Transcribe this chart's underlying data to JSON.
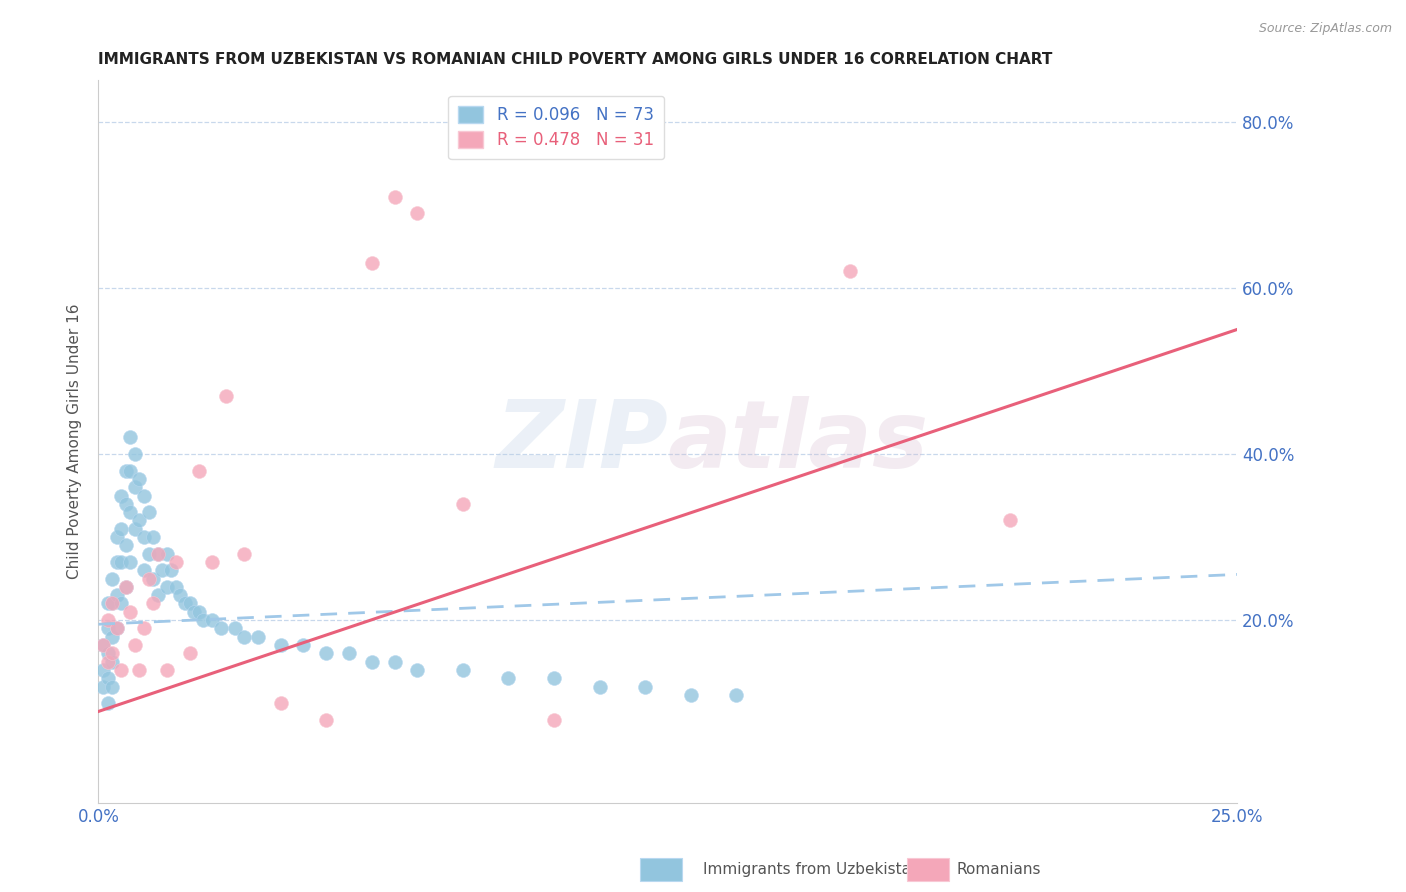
{
  "title": "IMMIGRANTS FROM UZBEKISTAN VS ROMANIAN CHILD POVERTY AMONG GIRLS UNDER 16 CORRELATION CHART",
  "source": "Source: ZipAtlas.com",
  "ylabel": "Child Poverty Among Girls Under 16",
  "xmin": 0.0,
  "xmax": 0.25,
  "ymin": -0.02,
  "ymax": 0.85,
  "blue_scatter_x": [
    0.001,
    0.001,
    0.001,
    0.002,
    0.002,
    0.002,
    0.002,
    0.002,
    0.003,
    0.003,
    0.003,
    0.003,
    0.003,
    0.004,
    0.004,
    0.004,
    0.004,
    0.005,
    0.005,
    0.005,
    0.005,
    0.006,
    0.006,
    0.006,
    0.006,
    0.007,
    0.007,
    0.007,
    0.007,
    0.008,
    0.008,
    0.008,
    0.009,
    0.009,
    0.01,
    0.01,
    0.01,
    0.011,
    0.011,
    0.012,
    0.012,
    0.013,
    0.013,
    0.014,
    0.015,
    0.015,
    0.016,
    0.017,
    0.018,
    0.019,
    0.02,
    0.021,
    0.022,
    0.023,
    0.025,
    0.027,
    0.03,
    0.032,
    0.035,
    0.04,
    0.045,
    0.05,
    0.055,
    0.06,
    0.065,
    0.07,
    0.08,
    0.09,
    0.1,
    0.11,
    0.12,
    0.13,
    0.14
  ],
  "blue_scatter_y": [
    0.17,
    0.14,
    0.12,
    0.22,
    0.19,
    0.16,
    0.13,
    0.1,
    0.25,
    0.22,
    0.18,
    0.15,
    0.12,
    0.3,
    0.27,
    0.23,
    0.19,
    0.35,
    0.31,
    0.27,
    0.22,
    0.38,
    0.34,
    0.29,
    0.24,
    0.42,
    0.38,
    0.33,
    0.27,
    0.4,
    0.36,
    0.31,
    0.37,
    0.32,
    0.35,
    0.3,
    0.26,
    0.33,
    0.28,
    0.3,
    0.25,
    0.28,
    0.23,
    0.26,
    0.28,
    0.24,
    0.26,
    0.24,
    0.23,
    0.22,
    0.22,
    0.21,
    0.21,
    0.2,
    0.2,
    0.19,
    0.19,
    0.18,
    0.18,
    0.17,
    0.17,
    0.16,
    0.16,
    0.15,
    0.15,
    0.14,
    0.14,
    0.13,
    0.13,
    0.12,
    0.12,
    0.11,
    0.11
  ],
  "pink_scatter_x": [
    0.001,
    0.002,
    0.002,
    0.003,
    0.003,
    0.004,
    0.005,
    0.006,
    0.007,
    0.008,
    0.009,
    0.01,
    0.011,
    0.012,
    0.013,
    0.015,
    0.017,
    0.02,
    0.022,
    0.025,
    0.028,
    0.032,
    0.04,
    0.05,
    0.06,
    0.065,
    0.07,
    0.08,
    0.1,
    0.165,
    0.2
  ],
  "pink_scatter_y": [
    0.17,
    0.2,
    0.15,
    0.22,
    0.16,
    0.19,
    0.14,
    0.24,
    0.21,
    0.17,
    0.14,
    0.19,
    0.25,
    0.22,
    0.28,
    0.14,
    0.27,
    0.16,
    0.38,
    0.27,
    0.47,
    0.28,
    0.1,
    0.08,
    0.63,
    0.71,
    0.69,
    0.34,
    0.08,
    0.62,
    0.32
  ],
  "blue_line_x": [
    0.0,
    0.25
  ],
  "blue_line_y": [
    0.195,
    0.255
  ],
  "pink_line_x": [
    0.0,
    0.25
  ],
  "pink_line_y": [
    0.09,
    0.55
  ],
  "watermark_zip": "ZIP",
  "watermark_atlas": "atlas",
  "bg_color": "#ffffff",
  "blue_color": "#92c5de",
  "pink_color": "#f4a7b9",
  "blue_line_color": "#a0c8e8",
  "pink_line_color": "#e8607a",
  "grid_color": "#c8d8ec",
  "text_color": "#4472c4",
  "title_color": "#222222",
  "legend_blue_r": "R = 0.096",
  "legend_blue_n": "N = 73",
  "legend_pink_r": "R = 0.478",
  "legend_pink_n": "N = 31",
  "yticks": [
    0.2,
    0.4,
    0.6,
    0.8
  ],
  "ytick_labels": [
    "20.0%",
    "40.0%",
    "60.0%",
    "80.0%"
  ]
}
